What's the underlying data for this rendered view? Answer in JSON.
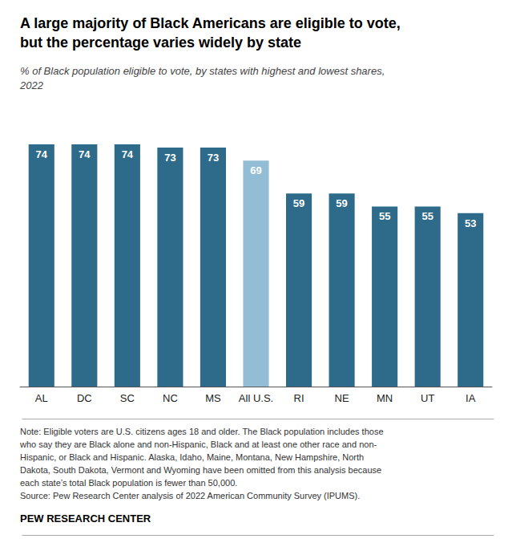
{
  "chart_data": {
    "type": "bar",
    "title": "A large majority of Black Americans are eligible to vote,\nbut the percentage varies widely by state",
    "subtitle": "% of Black population eligible to vote, by states with highest and lowest shares,\n2022",
    "categories": [
      "AL",
      "DC",
      "SC",
      "NC",
      "MS",
      "All U.S.",
      "RI",
      "NE",
      "MN",
      "UT",
      "IA"
    ],
    "values": [
      74,
      74,
      74,
      73,
      73,
      69,
      59,
      59,
      55,
      55,
      53
    ],
    "colors": [
      "#2e6b8a",
      "#2e6b8a",
      "#2e6b8a",
      "#2e6b8a",
      "#2e6b8a",
      "#93bdd4",
      "#2e6b8a",
      "#2e6b8a",
      "#2e6b8a",
      "#2e6b8a",
      "#2e6b8a"
    ],
    "ylim": [
      0,
      85
    ],
    "data_labels": true,
    "tick_labels": "x",
    "grid": false,
    "annotations": [
      "Note: Eligible voters are U.S. citizens ages 18 and older. The Black population includes those\nwho say they are Black alone and non-Hispanic, Black and at least one other race and non-\nHispanic, or Black and Hispanic. Alaska, Idaho, Maine, Montana, New Hampshire, North\nDakota, South Dakota, Vermont and Wyoming have been omitted from this analysis because\neach state’s total Black population is fewer than 50,000.\nSource: Pew Research Center analysis of 2022 American Community Survey (IPUMS).",
      "PEW RESEARCH CENTER"
    ]
  }
}
